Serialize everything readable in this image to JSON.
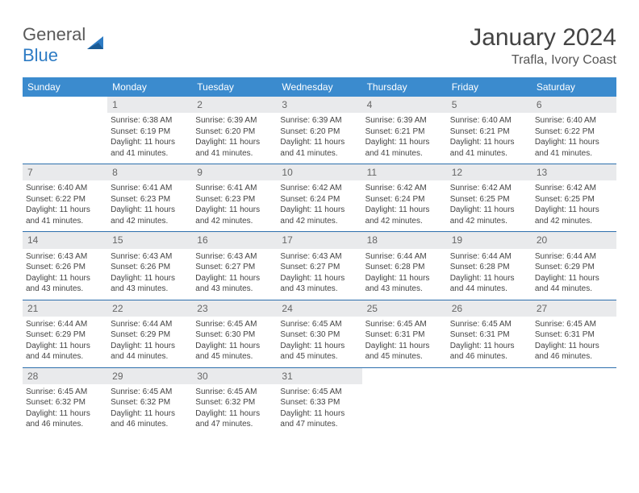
{
  "logo": {
    "text1": "General",
    "text2": "Blue"
  },
  "title": "January 2024",
  "location": "Trafla, Ivory Coast",
  "weekdays": [
    "Sunday",
    "Monday",
    "Tuesday",
    "Wednesday",
    "Thursday",
    "Friday",
    "Saturday"
  ],
  "colors": {
    "header_bg": "#3b8bce",
    "week_border": "#2d6fad",
    "daynum_bg": "#e9eaec"
  },
  "weeks": [
    [
      {
        "n": "",
        "sr": "",
        "ss": "",
        "dl": ""
      },
      {
        "n": "1",
        "sr": "Sunrise: 6:38 AM",
        "ss": "Sunset: 6:19 PM",
        "dl": "Daylight: 11 hours and 41 minutes."
      },
      {
        "n": "2",
        "sr": "Sunrise: 6:39 AM",
        "ss": "Sunset: 6:20 PM",
        "dl": "Daylight: 11 hours and 41 minutes."
      },
      {
        "n": "3",
        "sr": "Sunrise: 6:39 AM",
        "ss": "Sunset: 6:20 PM",
        "dl": "Daylight: 11 hours and 41 minutes."
      },
      {
        "n": "4",
        "sr": "Sunrise: 6:39 AM",
        "ss": "Sunset: 6:21 PM",
        "dl": "Daylight: 11 hours and 41 minutes."
      },
      {
        "n": "5",
        "sr": "Sunrise: 6:40 AM",
        "ss": "Sunset: 6:21 PM",
        "dl": "Daylight: 11 hours and 41 minutes."
      },
      {
        "n": "6",
        "sr": "Sunrise: 6:40 AM",
        "ss": "Sunset: 6:22 PM",
        "dl": "Daylight: 11 hours and 41 minutes."
      }
    ],
    [
      {
        "n": "7",
        "sr": "Sunrise: 6:40 AM",
        "ss": "Sunset: 6:22 PM",
        "dl": "Daylight: 11 hours and 41 minutes."
      },
      {
        "n": "8",
        "sr": "Sunrise: 6:41 AM",
        "ss": "Sunset: 6:23 PM",
        "dl": "Daylight: 11 hours and 42 minutes."
      },
      {
        "n": "9",
        "sr": "Sunrise: 6:41 AM",
        "ss": "Sunset: 6:23 PM",
        "dl": "Daylight: 11 hours and 42 minutes."
      },
      {
        "n": "10",
        "sr": "Sunrise: 6:42 AM",
        "ss": "Sunset: 6:24 PM",
        "dl": "Daylight: 11 hours and 42 minutes."
      },
      {
        "n": "11",
        "sr": "Sunrise: 6:42 AM",
        "ss": "Sunset: 6:24 PM",
        "dl": "Daylight: 11 hours and 42 minutes."
      },
      {
        "n": "12",
        "sr": "Sunrise: 6:42 AM",
        "ss": "Sunset: 6:25 PM",
        "dl": "Daylight: 11 hours and 42 minutes."
      },
      {
        "n": "13",
        "sr": "Sunrise: 6:42 AM",
        "ss": "Sunset: 6:25 PM",
        "dl": "Daylight: 11 hours and 42 minutes."
      }
    ],
    [
      {
        "n": "14",
        "sr": "Sunrise: 6:43 AM",
        "ss": "Sunset: 6:26 PM",
        "dl": "Daylight: 11 hours and 43 minutes."
      },
      {
        "n": "15",
        "sr": "Sunrise: 6:43 AM",
        "ss": "Sunset: 6:26 PM",
        "dl": "Daylight: 11 hours and 43 minutes."
      },
      {
        "n": "16",
        "sr": "Sunrise: 6:43 AM",
        "ss": "Sunset: 6:27 PM",
        "dl": "Daylight: 11 hours and 43 minutes."
      },
      {
        "n": "17",
        "sr": "Sunrise: 6:43 AM",
        "ss": "Sunset: 6:27 PM",
        "dl": "Daylight: 11 hours and 43 minutes."
      },
      {
        "n": "18",
        "sr": "Sunrise: 6:44 AM",
        "ss": "Sunset: 6:28 PM",
        "dl": "Daylight: 11 hours and 43 minutes."
      },
      {
        "n": "19",
        "sr": "Sunrise: 6:44 AM",
        "ss": "Sunset: 6:28 PM",
        "dl": "Daylight: 11 hours and 44 minutes."
      },
      {
        "n": "20",
        "sr": "Sunrise: 6:44 AM",
        "ss": "Sunset: 6:29 PM",
        "dl": "Daylight: 11 hours and 44 minutes."
      }
    ],
    [
      {
        "n": "21",
        "sr": "Sunrise: 6:44 AM",
        "ss": "Sunset: 6:29 PM",
        "dl": "Daylight: 11 hours and 44 minutes."
      },
      {
        "n": "22",
        "sr": "Sunrise: 6:44 AM",
        "ss": "Sunset: 6:29 PM",
        "dl": "Daylight: 11 hours and 44 minutes."
      },
      {
        "n": "23",
        "sr": "Sunrise: 6:45 AM",
        "ss": "Sunset: 6:30 PM",
        "dl": "Daylight: 11 hours and 45 minutes."
      },
      {
        "n": "24",
        "sr": "Sunrise: 6:45 AM",
        "ss": "Sunset: 6:30 PM",
        "dl": "Daylight: 11 hours and 45 minutes."
      },
      {
        "n": "25",
        "sr": "Sunrise: 6:45 AM",
        "ss": "Sunset: 6:31 PM",
        "dl": "Daylight: 11 hours and 45 minutes."
      },
      {
        "n": "26",
        "sr": "Sunrise: 6:45 AM",
        "ss": "Sunset: 6:31 PM",
        "dl": "Daylight: 11 hours and 46 minutes."
      },
      {
        "n": "27",
        "sr": "Sunrise: 6:45 AM",
        "ss": "Sunset: 6:31 PM",
        "dl": "Daylight: 11 hours and 46 minutes."
      }
    ],
    [
      {
        "n": "28",
        "sr": "Sunrise: 6:45 AM",
        "ss": "Sunset: 6:32 PM",
        "dl": "Daylight: 11 hours and 46 minutes."
      },
      {
        "n": "29",
        "sr": "Sunrise: 6:45 AM",
        "ss": "Sunset: 6:32 PM",
        "dl": "Daylight: 11 hours and 46 minutes."
      },
      {
        "n": "30",
        "sr": "Sunrise: 6:45 AM",
        "ss": "Sunset: 6:32 PM",
        "dl": "Daylight: 11 hours and 47 minutes."
      },
      {
        "n": "31",
        "sr": "Sunrise: 6:45 AM",
        "ss": "Sunset: 6:33 PM",
        "dl": "Daylight: 11 hours and 47 minutes."
      },
      {
        "n": "",
        "sr": "",
        "ss": "",
        "dl": ""
      },
      {
        "n": "",
        "sr": "",
        "ss": "",
        "dl": ""
      },
      {
        "n": "",
        "sr": "",
        "ss": "",
        "dl": ""
      }
    ]
  ]
}
